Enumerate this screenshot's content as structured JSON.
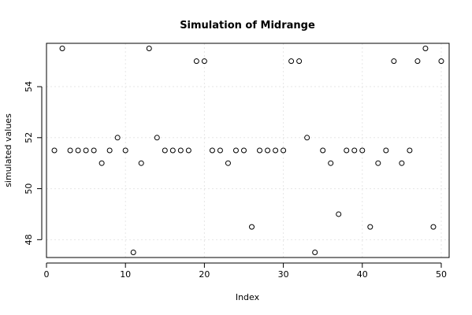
{
  "chart_data": {
    "type": "scatter",
    "title": "Simulation of Midrange",
    "xlabel": "Index",
    "ylabel": "simulated values",
    "xlim": [
      0,
      51
    ],
    "ylim": [
      47.3,
      55.7
    ],
    "x_ticks": [
      0,
      10,
      20,
      30,
      40,
      50
    ],
    "y_ticks": [
      48,
      50,
      52,
      54
    ],
    "grid": true,
    "marker": "open-circle",
    "series": [
      {
        "x": [
          1,
          2,
          3,
          4,
          5,
          6,
          7,
          8,
          9,
          10,
          11,
          12,
          13,
          14,
          15,
          16,
          17,
          18,
          19,
          20,
          21,
          22,
          23,
          24,
          25,
          26,
          27,
          28,
          29,
          30,
          31,
          32,
          33,
          34,
          35,
          36,
          37,
          38,
          39,
          40,
          41,
          42,
          43,
          44,
          45,
          46,
          47,
          48,
          49,
          50
        ],
        "values": [
          51.5,
          55.5,
          51.5,
          51.5,
          51.5,
          51.5,
          51.0,
          51.5,
          52.0,
          51.5,
          47.5,
          51.0,
          55.5,
          52.0,
          51.5,
          51.5,
          51.5,
          51.5,
          55.0,
          55.0,
          51.5,
          51.5,
          51.0,
          51.5,
          51.5,
          48.5,
          51.5,
          51.5,
          51.5,
          51.5,
          55.0,
          55.0,
          52.0,
          47.5,
          51.5,
          51.0,
          49.0,
          51.5,
          51.5,
          51.5,
          48.5,
          51.0,
          51.5,
          55.0,
          51.0,
          51.5,
          55.0,
          55.5,
          48.5,
          55.0
        ]
      }
    ]
  }
}
